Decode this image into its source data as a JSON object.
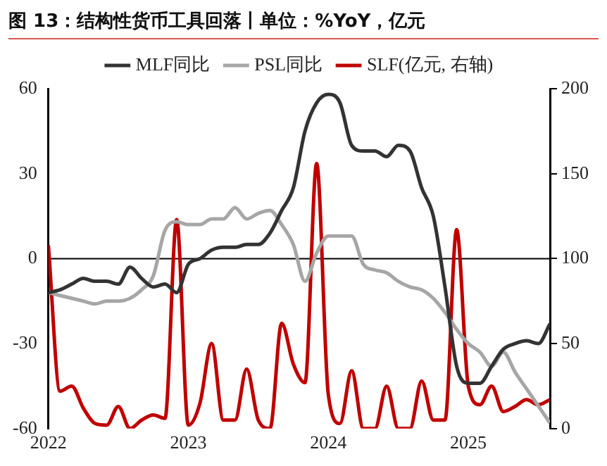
{
  "chart_data": {
    "type": "line",
    "title": "图 13：结构性货币工具回落丨单位：%YoY，亿元",
    "x": [
      "2022-01",
      "2022-02",
      "2022-03",
      "2022-04",
      "2022-05",
      "2022-06",
      "2022-07",
      "2022-08",
      "2022-09",
      "2022-10",
      "2022-11",
      "2022-12",
      "2023-01",
      "2023-02",
      "2023-03",
      "2023-04",
      "2023-05",
      "2023-06",
      "2023-07",
      "2023-08",
      "2023-09",
      "2023-10",
      "2023-11",
      "2023-12",
      "2024-01",
      "2024-02",
      "2024-03",
      "2024-04",
      "2024-05",
      "2024-06",
      "2024-07",
      "2024-08",
      "2024-09",
      "2024-10",
      "2024-11",
      "2024-12",
      "2025-01",
      "2025-02",
      "2025-03",
      "2025-04",
      "2025-05",
      "2025-06",
      "2025-07",
      "2025-08"
    ],
    "series": [
      {
        "name": "MLF同比",
        "color": "#333333",
        "values": [
          -12,
          -11,
          -9,
          -7,
          -8,
          -8,
          -9,
          -3,
          -7,
          -10,
          -9,
          -12,
          -2,
          0,
          3,
          4,
          4,
          5,
          5,
          9,
          17,
          25,
          45,
          55,
          58,
          55,
          40,
          38,
          38,
          36,
          40,
          38,
          25,
          15,
          -10,
          -38,
          -44,
          -44,
          -38,
          -32,
          -30,
          -29,
          -30,
          -23
        ]
      },
      {
        "name": "PSL同比",
        "color": "#a6a6a6",
        "values": [
          -12,
          -13,
          -14,
          -15,
          -16,
          -15,
          -15,
          -14,
          -11,
          -6,
          10,
          13,
          12,
          12,
          14,
          14,
          18,
          14,
          16,
          17,
          12,
          5,
          -8,
          2,
          8,
          8,
          8,
          -2,
          -4,
          -5,
          -8,
          -10,
          -11,
          -14,
          -19,
          -25,
          -30,
          -33,
          -38,
          -33,
          -40,
          -46,
          -52,
          -58
        ]
      },
      {
        "name": "SLF(亿元, 右轴)",
        "color": "#c00000",
        "axis": "y2",
        "values": [
          108,
          22,
          25,
          12,
          3,
          2,
          13,
          0,
          5,
          8,
          6,
          123,
          2,
          15,
          50,
          5,
          5,
          35,
          5,
          0,
          62,
          38,
          27,
          156,
          20,
          3,
          34,
          0,
          0,
          25,
          0,
          0,
          28,
          5,
          5,
          117,
          25,
          14,
          25,
          10,
          13,
          17,
          14,
          17
        ]
      }
    ],
    "xlim": [
      "2022-01",
      "2025-08"
    ],
    "xticks": [
      "2022",
      "2023",
      "2024",
      "2025"
    ],
    "ylim": [
      -60,
      60
    ],
    "yticks": [
      -60,
      -30,
      0,
      30,
      60
    ],
    "y2lim": [
      0,
      200
    ],
    "y2ticks": [
      0,
      50,
      100,
      150,
      200
    ],
    "ref_lines": [
      {
        "axis": "y",
        "value": 0,
        "color": "#000000"
      }
    ],
    "legend": "top",
    "grid": false,
    "marker": "none",
    "line_style": "solid"
  }
}
